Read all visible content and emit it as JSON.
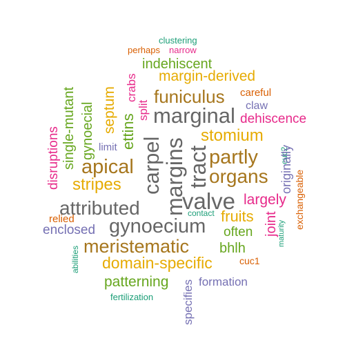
{
  "colors": {
    "green": "#1b9e77",
    "orange": "#d95f02",
    "purple": "#7570b3",
    "magenta": "#e7298a",
    "lime": "#66a61e",
    "gold": "#e6ab02",
    "brown": "#a6761d",
    "gray": "#666666"
  },
  "words": [
    {
      "text": "clustering",
      "color": "green"
    },
    {
      "text": "perhaps",
      "color": "orange"
    },
    {
      "text": "narrow",
      "color": "magenta"
    },
    {
      "text": "indehiscent",
      "color": "lime"
    },
    {
      "text": "margin-derived",
      "color": "gold"
    },
    {
      "text": "crabs",
      "color": "magenta"
    },
    {
      "text": "careful",
      "color": "orange"
    },
    {
      "text": "funiculus",
      "color": "brown"
    },
    {
      "text": "claw",
      "color": "purple"
    },
    {
      "text": "marginal",
      "color": "gray"
    },
    {
      "text": "dehiscence",
      "color": "magenta"
    },
    {
      "text": "septum",
      "color": "gold"
    },
    {
      "text": "split",
      "color": "magenta"
    },
    {
      "text": "ettins",
      "color": "lime"
    },
    {
      "text": "gynoecial",
      "color": "lime"
    },
    {
      "text": "single-mutant",
      "color": "lime"
    },
    {
      "text": "disruptions",
      "color": "magenta"
    },
    {
      "text": "stomium",
      "color": "gold"
    },
    {
      "text": "limit",
      "color": "purple"
    },
    {
      "text": "carpel",
      "color": "gray"
    },
    {
      "text": "margins",
      "color": "gray"
    },
    {
      "text": "tract",
      "color": "gray"
    },
    {
      "text": "partly",
      "color": "brown"
    },
    {
      "text": "cuc2",
      "color": "green"
    },
    {
      "text": "originally",
      "color": "purple"
    },
    {
      "text": "apical",
      "color": "brown"
    },
    {
      "text": "organs",
      "color": "brown"
    },
    {
      "text": "exchangeable",
      "color": "orange"
    },
    {
      "text": "stripes",
      "color": "gold"
    },
    {
      "text": "valve",
      "color": "gray"
    },
    {
      "text": "largely",
      "color": "magenta"
    },
    {
      "text": "attributed",
      "color": "gray"
    },
    {
      "text": "fruits",
      "color": "gold"
    },
    {
      "text": "relied",
      "color": "orange"
    },
    {
      "text": "contact",
      "color": "green"
    },
    {
      "text": "joint",
      "color": "magenta"
    },
    {
      "text": "gynoecium",
      "color": "gray"
    },
    {
      "text": "often",
      "color": "lime"
    },
    {
      "text": "enclosed",
      "color": "purple"
    },
    {
      "text": "maturity",
      "color": "green"
    },
    {
      "text": "meristematic",
      "color": "brown"
    },
    {
      "text": "bhlh",
      "color": "lime"
    },
    {
      "text": "abilities",
      "color": "green"
    },
    {
      "text": "domain-specific",
      "color": "gold"
    },
    {
      "text": "cuc1",
      "color": "orange"
    },
    {
      "text": "patterning",
      "color": "lime"
    },
    {
      "text": "formation",
      "color": "purple"
    },
    {
      "text": "specifies",
      "color": "purple"
    },
    {
      "text": "fertilization",
      "color": "green"
    }
  ]
}
